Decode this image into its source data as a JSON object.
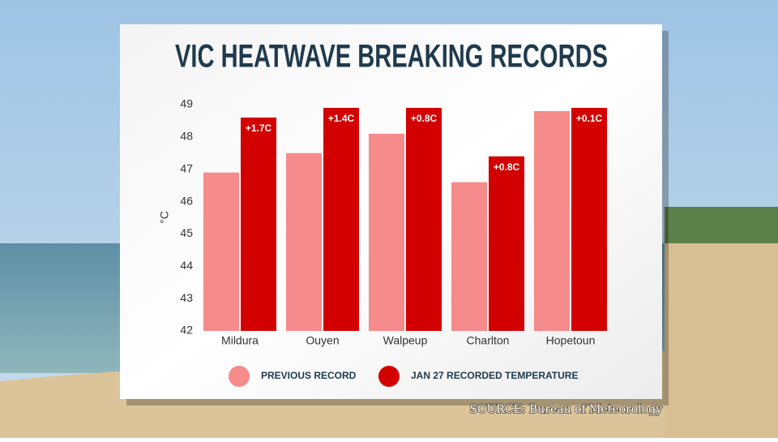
{
  "chart_data": {
    "type": "bar",
    "title": "VIC HEATWAVE BREAKING RECORDS",
    "y_label": "°C",
    "categories": [
      "Mildura",
      "Ouyen",
      "Walpeup",
      "Charlton",
      "Hopetoun"
    ],
    "series": [
      {
        "name": "PREVIOUS RECORD",
        "color": "#f58b8b",
        "values": [
          46.9,
          47.5,
          48.1,
          46.6,
          48.8
        ]
      },
      {
        "name": "JAN 27 RECORDED TEMPERATURE",
        "color": "#d30000",
        "values": [
          48.6,
          48.9,
          48.9,
          47.4,
          48.9
        ]
      }
    ],
    "annotations": [
      {
        "value": 1.7,
        "label": "+1.7C"
      },
      {
        "value": 1.4,
        "label": "+1.4C"
      },
      {
        "value": 0.8,
        "label": "+0.8C"
      },
      {
        "value": 0.8,
        "label": "+0.8C"
      },
      {
        "value": 0.1,
        "label": "+0.1C"
      }
    ],
    "ylim": [
      42,
      49
    ],
    "yticks": [
      42,
      43,
      44,
      45,
      46,
      47,
      48,
      49
    ],
    "grid": false,
    "source": "SOURCE: Bureau of Meteorology"
  }
}
